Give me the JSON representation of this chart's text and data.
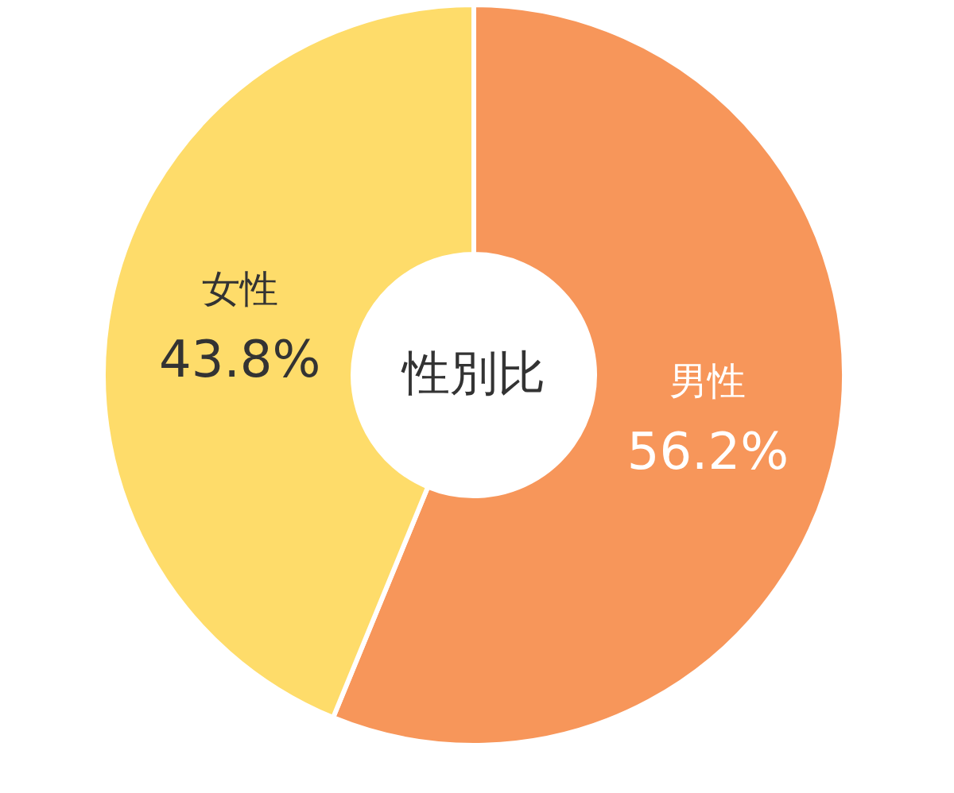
{
  "chart_data": {
    "type": "donut",
    "title": "性別比",
    "categories": [
      "男性",
      "女性"
    ],
    "values": [
      56.2,
      43.8
    ],
    "colors": [
      "#f7965a",
      "#fedc6a"
    ],
    "value_labels": [
      "56.2%",
      "43.8%"
    ]
  }
}
